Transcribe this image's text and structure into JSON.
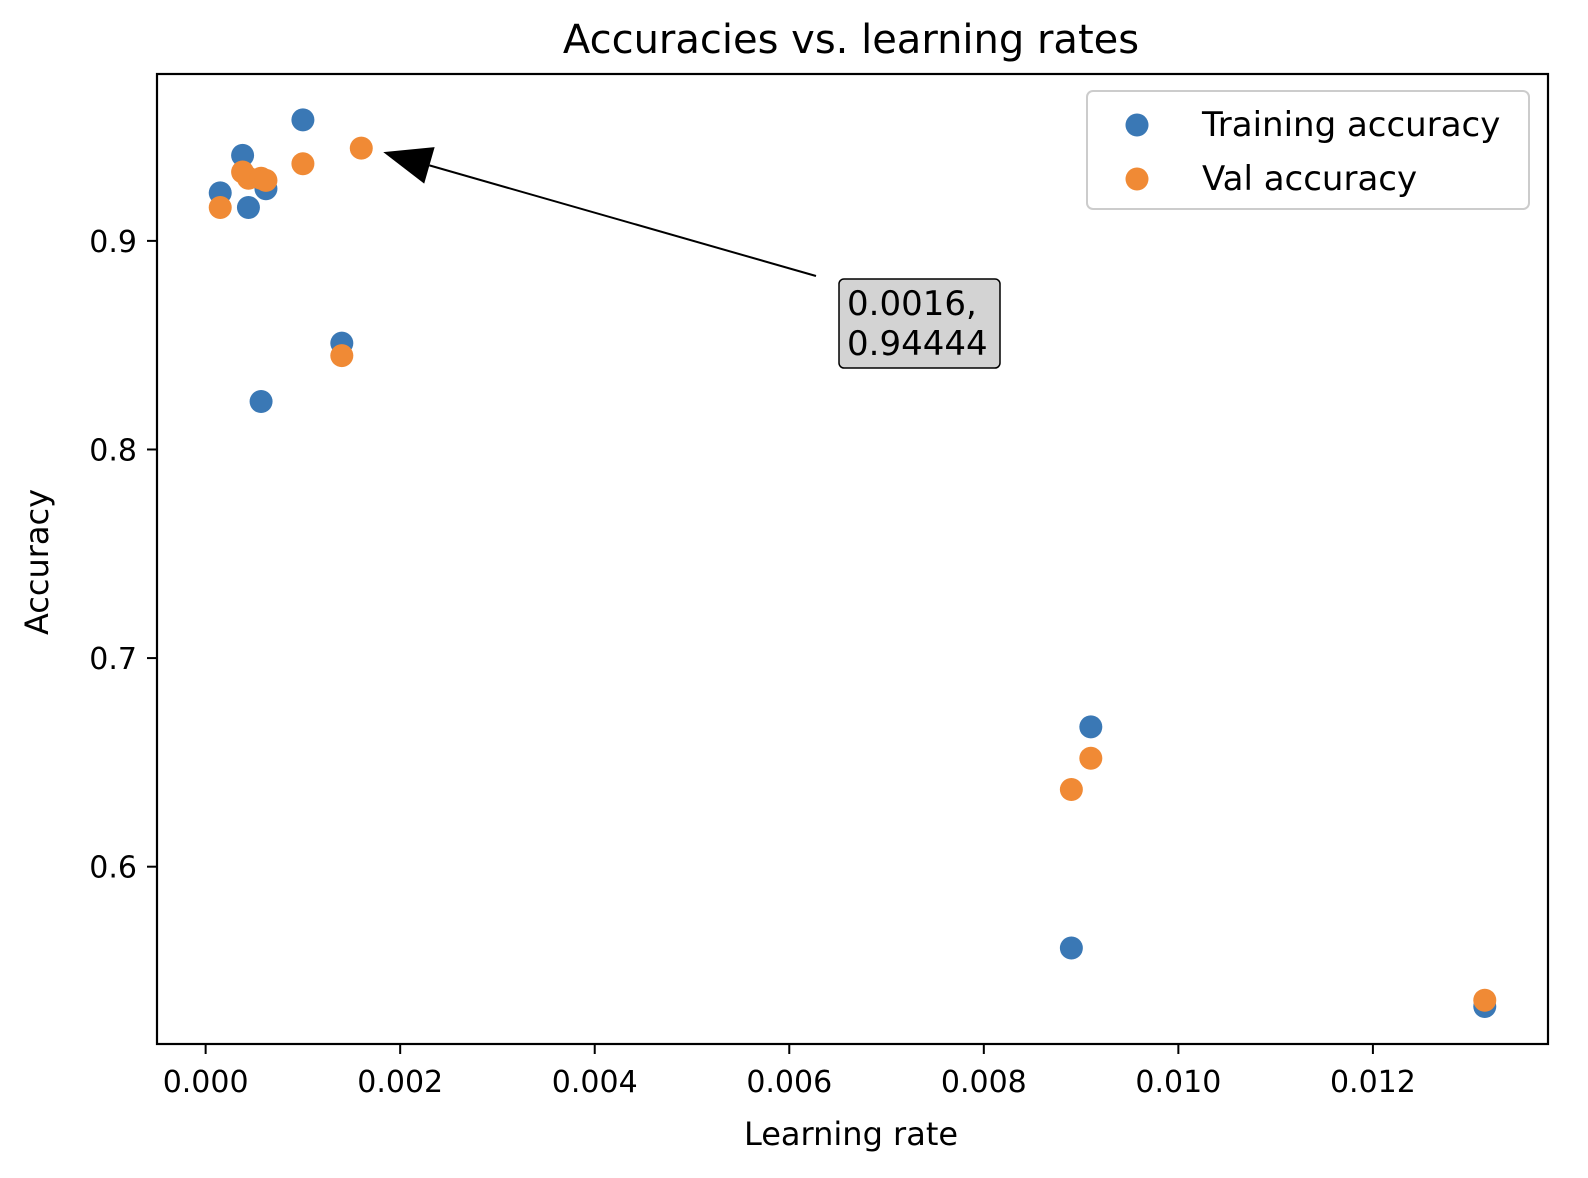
{
  "chart_data": {
    "type": "scatter",
    "title": "Accuracies vs. learning rates",
    "xlabel": "Learning rate",
    "ylabel": "Accuracy",
    "xlim": [
      -0.0005,
      0.0138
    ],
    "ylim": [
      0.515,
      0.98
    ],
    "xticks": [
      0.0,
      0.002,
      0.004,
      0.006,
      0.008,
      0.01,
      0.012
    ],
    "xtick_labels": [
      "0.000",
      "0.002",
      "0.004",
      "0.006",
      "0.008",
      "0.010",
      "0.012"
    ],
    "yticks": [
      0.6,
      0.7,
      0.8,
      0.9
    ],
    "ytick_labels": [
      "0.6",
      "0.7",
      "0.8",
      "0.9"
    ],
    "grid": false,
    "legend_position": "top-right",
    "series": [
      {
        "name": "Training accuracy",
        "color": "#3a78b5",
        "x": [
          0.00015,
          0.00038,
          0.00044,
          0.00057,
          0.00062,
          0.001,
          0.0014,
          0.0089,
          0.0091,
          0.01315
        ],
        "y": [
          0.923,
          0.941,
          0.916,
          0.823,
          0.925,
          0.958,
          0.851,
          0.561,
          0.667,
          0.533
        ]
      },
      {
        "name": "Val accuracy",
        "color": "#f08a35",
        "x": [
          0.00015,
          0.00038,
          0.00044,
          0.00057,
          0.00062,
          0.001,
          0.0014,
          0.0016,
          0.0089,
          0.0091,
          0.01315
        ],
        "y": [
          0.916,
          0.933,
          0.93,
          0.93,
          0.929,
          0.937,
          0.845,
          0.94444,
          0.637,
          0.652,
          0.536
        ]
      }
    ],
    "annotation": {
      "text_lines": [
        "0.0016,",
        "0.94444"
      ],
      "point": [
        0.0016,
        0.94444
      ]
    }
  }
}
